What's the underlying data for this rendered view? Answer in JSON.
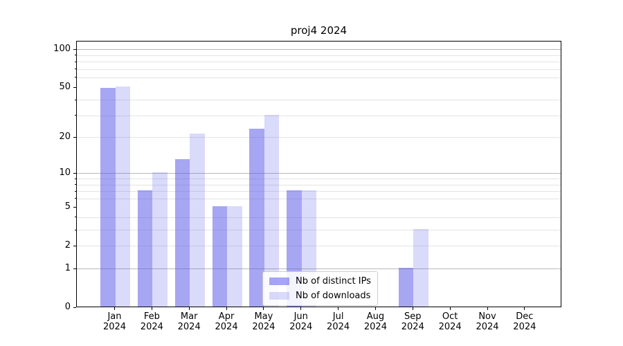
{
  "chart_data": {
    "type": "bar",
    "title": "proj4 2024",
    "categories": [
      "Jan",
      "Feb",
      "Mar",
      "Apr",
      "May",
      "Jun",
      "Jul",
      "Aug",
      "Sep",
      "Oct",
      "Nov",
      "Dec"
    ],
    "x_year": "2024",
    "series": [
      {
        "name": "Nb of distinct IPs",
        "color": "rgba(85,85,230,0.52)",
        "values": [
          49,
          7,
          13,
          5,
          23,
          7,
          0,
          0,
          1,
          0,
          0,
          0
        ]
      },
      {
        "name": "Nb of downloads",
        "color": "rgba(85,85,230,0.22)",
        "values": [
          50,
          10,
          21,
          5,
          30,
          7,
          0,
          0,
          3,
          0,
          0,
          0
        ]
      }
    ],
    "yscale": "log1p",
    "ylim": [
      0,
      115
    ],
    "yticks": [
      0,
      1,
      2,
      5,
      10,
      20,
      50,
      100
    ],
    "grid_major": [
      1,
      10,
      100
    ],
    "grid_minor": [
      2,
      3,
      4,
      6,
      7,
      8,
      9,
      20,
      30,
      40,
      60,
      70,
      80,
      90
    ],
    "grid": "on",
    "legend_position": "lower center",
    "colors": {
      "grid_major": "#b8b8b8",
      "grid_minor": "rgba(176,176,176,0.35)",
      "axis": "#000000"
    }
  }
}
